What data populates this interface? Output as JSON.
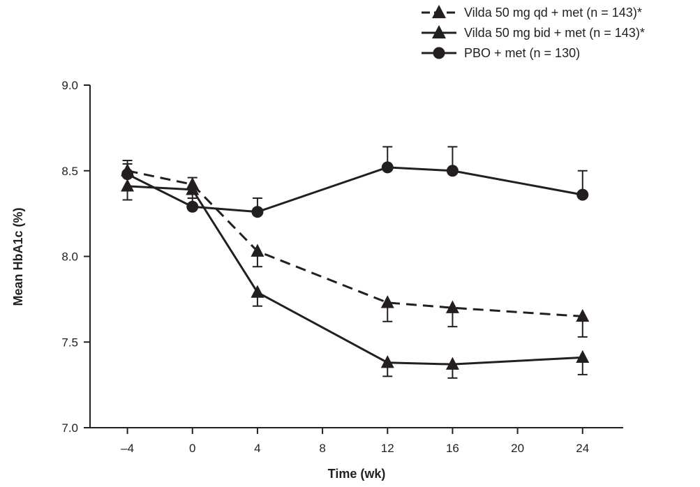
{
  "chart_data": {
    "type": "line",
    "title": "",
    "xlabel": "Time (wk)",
    "ylabel": "Mean HbA1c (%)",
    "x_ticks": [
      -4,
      0,
      4,
      8,
      12,
      16,
      20,
      24
    ],
    "x_tick_labels": [
      "–4",
      "0",
      "4",
      "8",
      "12",
      "16",
      "20",
      "24"
    ],
    "y_ticks": [
      7.0,
      7.5,
      8.0,
      8.5,
      9.0
    ],
    "y_tick_labels": [
      "7.0",
      "7.5",
      "8.0",
      "8.5",
      "9.0"
    ],
    "xlim": [
      -6.3,
      26.5
    ],
    "ylim": [
      7.0,
      9.0
    ],
    "grid": false,
    "legend_position": "top-right",
    "series": [
      {
        "name": "Vilda 50 mg qd + met (n = 143)*",
        "marker": "triangle",
        "line_style": "dashed",
        "x": [
          -4,
          0,
          4,
          12,
          16,
          24
        ],
        "y": [
          8.5,
          8.42,
          8.03,
          7.73,
          7.7,
          7.65
        ],
        "err": [
          0.04,
          0.04,
          0.09,
          0.11,
          0.11,
          0.12
        ],
        "err_dir": [
          1,
          1,
          -1,
          -1,
          -1,
          -1
        ]
      },
      {
        "name": "Vilda 50 mg bid + met (n = 143)*",
        "marker": "triangle",
        "line_style": "solid",
        "x": [
          -4,
          0,
          4,
          12,
          16,
          24
        ],
        "y": [
          8.41,
          8.39,
          7.79,
          7.38,
          7.37,
          7.41
        ],
        "err": [
          0.08,
          0.05,
          0.08,
          0.08,
          0.08,
          0.1
        ],
        "err_dir": [
          -1,
          -1,
          -1,
          -1,
          -1,
          -1
        ]
      },
      {
        "name": "PBO + met (n = 130)",
        "marker": "circle",
        "line_style": "solid",
        "x": [
          -4,
          0,
          4,
          12,
          16,
          24
        ],
        "y": [
          8.48,
          8.29,
          8.26,
          8.52,
          8.5,
          8.36
        ],
        "err": [
          0.08,
          0.05,
          0.08,
          0.12,
          0.14,
          0.14
        ],
        "err_dir": [
          1,
          1,
          1,
          1,
          1,
          1
        ]
      }
    ]
  }
}
